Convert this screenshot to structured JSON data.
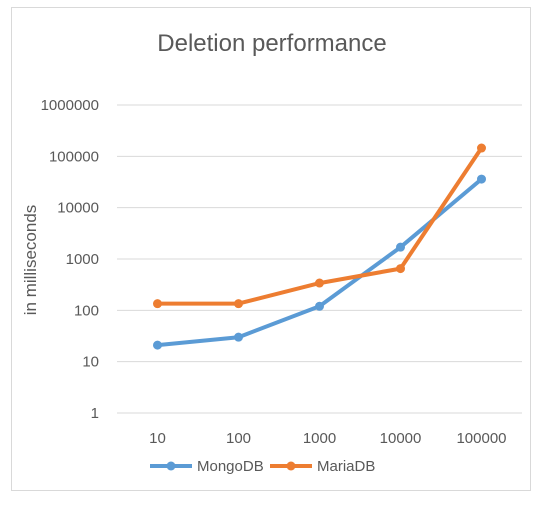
{
  "chart_data": {
    "type": "line",
    "title": "Deletion performance",
    "xlabel": "",
    "ylabel": "in milliseconds",
    "y_scale": "log10",
    "ylim": [
      1,
      1000000
    ],
    "y_ticks": [
      "1",
      "10",
      "100",
      "1000",
      "10000",
      "100000",
      "1000000"
    ],
    "categories": [
      "10",
      "100",
      "1000",
      "10000",
      "100000"
    ],
    "series": [
      {
        "name": "MongoDB",
        "color": "#5b9bd5",
        "values": [
          21,
          30,
          120,
          1700,
          36000
        ]
      },
      {
        "name": "MariaDB",
        "color": "#ed7d31",
        "values": [
          135,
          135,
          340,
          650,
          145000
        ]
      }
    ],
    "grid": true,
    "legend_position": "bottom"
  }
}
